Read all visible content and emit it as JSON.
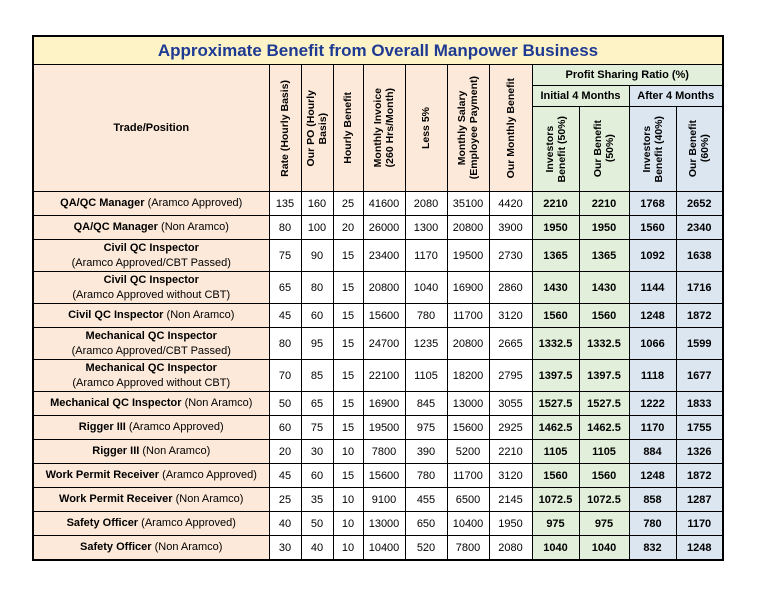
{
  "title": "Approximate Benefit from Overall Manpower Business",
  "headers": {
    "trade": "Trade/Position",
    "rate": "Rate (Hourly Basis)",
    "our_po": "Our PO (Hourly\nBasis)",
    "hourly_benefit": "Hourly Benefit",
    "monthly_invoice": "Monthly Invoice\n(260 Hrs/Month)",
    "less5": "Less 5%",
    "monthly_salary": "Monthly Salary\n(Employee Payment)",
    "our_monthly_benefit": "Our Monthly Benefit",
    "profit_sharing": "Profit Sharing Ratio (%)",
    "initial": "Initial 4 Months",
    "after": "After 4 Months",
    "inv50": "Investors\nBenefit (50%)",
    "our50": "Our Benefit\n(50%)",
    "inv40": "Investors\nBenefit (40%)",
    "our60": "Our Benefit\n(60%)"
  },
  "rows": [
    {
      "line1": "QA/QC Manager",
      "line2": "",
      "suffix": "(Aramco Approved)",
      "rate": "135",
      "po": "160",
      "hb": "25",
      "inv": "41600",
      "less": "2080",
      "sal": "35100",
      "omb": "4420",
      "i50": "2210",
      "o50": "2210",
      "i40": "1768",
      "o60": "2652"
    },
    {
      "line1": "QA/QC Manager",
      "line2": "",
      "suffix": "(Non Aramco)",
      "rate": "80",
      "po": "100",
      "hb": "20",
      "inv": "26000",
      "less": "1300",
      "sal": "20800",
      "omb": "3900",
      "i50": "1950",
      "o50": "1950",
      "i40": "1560",
      "o60": "2340"
    },
    {
      "line1": "Civil QC Inspector",
      "line2": "(Aramco Approved/CBT Passed)",
      "suffix": "",
      "rate": "75",
      "po": "90",
      "hb": "15",
      "inv": "23400",
      "less": "1170",
      "sal": "19500",
      "omb": "2730",
      "i50": "1365",
      "o50": "1365",
      "i40": "1092",
      "o60": "1638"
    },
    {
      "line1": "Civil QC Inspector",
      "line2": "(Aramco Approved without CBT)",
      "suffix": "",
      "rate": "65",
      "po": "80",
      "hb": "15",
      "inv": "20800",
      "less": "1040",
      "sal": "16900",
      "omb": "2860",
      "i50": "1430",
      "o50": "1430",
      "i40": "1144",
      "o60": "1716"
    },
    {
      "line1": "Civil QC Inspector",
      "line2": "",
      "suffix": "(Non Aramco)",
      "rate": "45",
      "po": "60",
      "hb": "15",
      "inv": "15600",
      "less": "780",
      "sal": "11700",
      "omb": "3120",
      "i50": "1560",
      "o50": "1560",
      "i40": "1248",
      "o60": "1872"
    },
    {
      "line1": "Mechanical QC Inspector",
      "line2": "(Aramco Approved/CBT Passed)",
      "suffix": "",
      "rate": "80",
      "po": "95",
      "hb": "15",
      "inv": "24700",
      "less": "1235",
      "sal": "20800",
      "omb": "2665",
      "i50": "1332.5",
      "o50": "1332.5",
      "i40": "1066",
      "o60": "1599"
    },
    {
      "line1": "Mechanical QC Inspector",
      "line2": "(Aramco Approved without CBT)",
      "suffix": "",
      "rate": "70",
      "po": "85",
      "hb": "15",
      "inv": "22100",
      "less": "1105",
      "sal": "18200",
      "omb": "2795",
      "i50": "1397.5",
      "o50": "1397.5",
      "i40": "1118",
      "o60": "1677"
    },
    {
      "line1": "Mechanical QC Inspector",
      "line2": "",
      "suffix": "(Non Aramco)",
      "rate": "50",
      "po": "65",
      "hb": "15",
      "inv": "16900",
      "less": "845",
      "sal": "13000",
      "omb": "3055",
      "i50": "1527.5",
      "o50": "1527.5",
      "i40": "1222",
      "o60": "1833"
    },
    {
      "line1": "Rigger III",
      "line2": "",
      "suffix": "(Aramco Approved)",
      "rate": "60",
      "po": "75",
      "hb": "15",
      "inv": "19500",
      "less": "975",
      "sal": "15600",
      "omb": "2925",
      "i50": "1462.5",
      "o50": "1462.5",
      "i40": "1170",
      "o60": "1755"
    },
    {
      "line1": "Rigger III",
      "line2": "",
      "suffix": "(Non Aramco)",
      "rate": "20",
      "po": "30",
      "hb": "10",
      "inv": "7800",
      "less": "390",
      "sal": "5200",
      "omb": "2210",
      "i50": "1105",
      "o50": "1105",
      "i40": "884",
      "o60": "1326"
    },
    {
      "line1": "Work Permit Receiver",
      "line2": "",
      "suffix": "(Aramco Approved)",
      "rate": "45",
      "po": "60",
      "hb": "15",
      "inv": "15600",
      "less": "780",
      "sal": "11700",
      "omb": "3120",
      "i50": "1560",
      "o50": "1560",
      "i40": "1248",
      "o60": "1872"
    },
    {
      "line1": "Work Permit Receiver",
      "line2": "",
      "suffix": "(Non Aramco)",
      "rate": "25",
      "po": "35",
      "hb": "10",
      "inv": "9100",
      "less": "455",
      "sal": "6500",
      "omb": "2145",
      "i50": "1072.5",
      "o50": "1072.5",
      "i40": "858",
      "o60": "1287"
    },
    {
      "line1": "Safety Officer",
      "line2": "",
      "suffix": "(Aramco Approved)",
      "rate": "40",
      "po": "50",
      "hb": "10",
      "inv": "13000",
      "less": "650",
      "sal": "10400",
      "omb": "1950",
      "i50": "975",
      "o50": "975",
      "i40": "780",
      "o60": "1170"
    },
    {
      "line1": "Safety Officer",
      "line2": "",
      "suffix": "(Non Aramco)",
      "rate": "30",
      "po": "40",
      "hb": "10",
      "inv": "10400",
      "less": "520",
      "sal": "7800",
      "omb": "2080",
      "i50": "1040",
      "o50": "1040",
      "i40": "832",
      "o60": "1248"
    }
  ]
}
